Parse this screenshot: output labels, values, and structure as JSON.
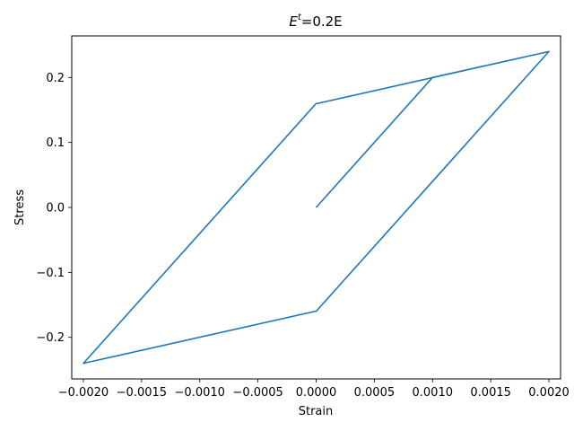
{
  "chart_data": {
    "type": "line",
    "title_base": "E",
    "title_sup": "t",
    "title_rest": "=0.2E",
    "xlabel": "Strain",
    "ylabel": "Stress",
    "xlim": [
      -0.0021,
      0.0021
    ],
    "ylim": [
      -0.264,
      0.264
    ],
    "xticks": [
      -0.002,
      -0.0015,
      -0.001,
      -0.0005,
      0.0,
      0.0005,
      0.001,
      0.0015,
      0.002
    ],
    "xtick_labels": [
      "−0.0020",
      "−0.0015",
      "−0.0010",
      "−0.0005",
      "0.0000",
      "0.0005",
      "0.0010",
      "0.0015",
      "0.0020"
    ],
    "yticks": [
      -0.2,
      -0.1,
      0.0,
      0.1,
      0.2
    ],
    "ytick_labels": [
      "−0.2",
      "−0.1",
      "0.0",
      "0.1",
      "0.2"
    ],
    "grid": false,
    "line_color": "#1f77b4",
    "series": [
      {
        "x": [
          0.0,
          0.001,
          0.002,
          0.0,
          -1e-05,
          -0.002,
          0.0,
          1e-05,
          0.002
        ],
        "y": [
          0.0,
          0.2,
          0.24,
          -0.16,
          -0.16,
          -0.24,
          0.16,
          0.16,
          0.24
        ]
      }
    ]
  }
}
